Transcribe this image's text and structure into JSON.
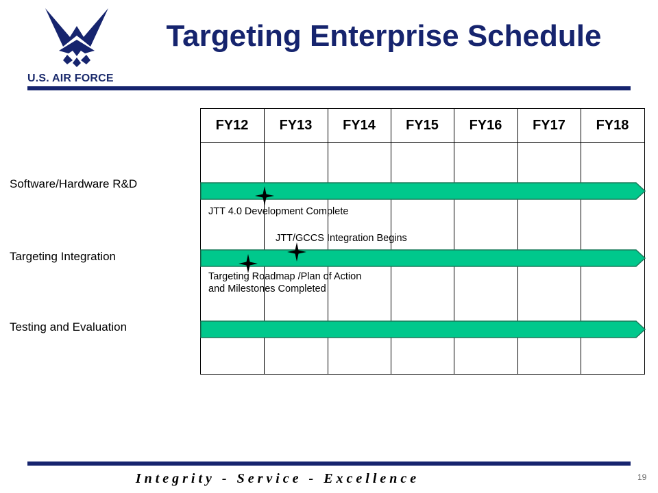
{
  "header": {
    "logo_text": "U.S. AIR FORCE",
    "title": "Targeting Enterprise Schedule"
  },
  "schedule": {
    "years": [
      "FY12",
      "FY13",
      "FY14",
      "FY15",
      "FY16",
      "FY17",
      "FY18"
    ],
    "rows": [
      {
        "label": "Software/Hardware R&D",
        "start": "FY12",
        "end": "FY18"
      },
      {
        "label": "Targeting Integration",
        "start": "FY12",
        "end": "FY18"
      },
      {
        "label": "Testing and Evaluation",
        "start": "FY12",
        "end": "FY18"
      }
    ],
    "milestones": [
      {
        "label": "JTT 4.0 Development Complete"
      },
      {
        "label": "JTT/GCCS Integration Begins"
      },
      {
        "label_line1": "Targeting Roadmap /Plan of Action",
        "label_line2": "and Milestones Completed"
      }
    ]
  },
  "footer": {
    "motto": "Integrity - Service - Excellence",
    "page_number": "19"
  },
  "colors": {
    "brand_navy": "#16246e",
    "bar_green": "#00c88c"
  },
  "icons": [
    "air-force-wings-icon",
    "milestone-star-icon",
    "bar-arrow-icon"
  ]
}
